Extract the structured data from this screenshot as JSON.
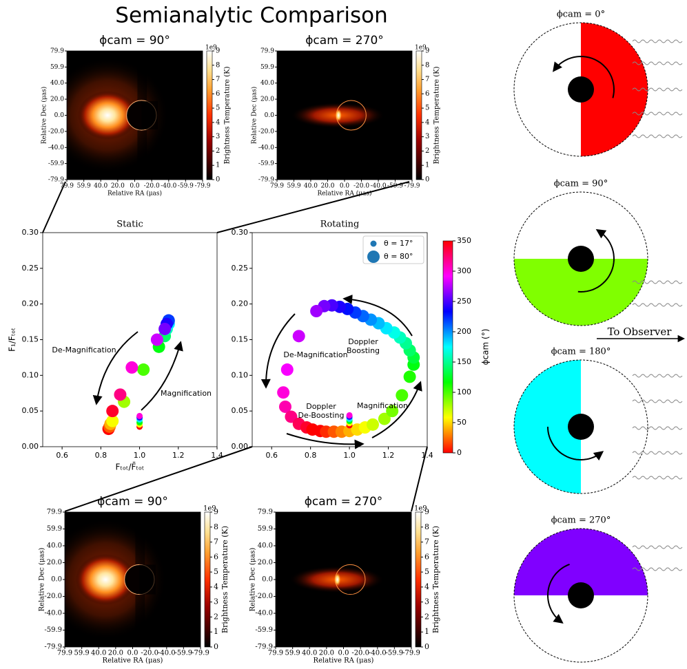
{
  "title": "Semianalytic Comparison",
  "chart_data": [
    {
      "type": "image",
      "title": "ϕcam = 90°",
      "xlabel": "Relative RA (μas)",
      "ylabel": "Relative Dec (μas)",
      "xlim": [
        79.9,
        -79.9
      ],
      "ylim": [
        -79.9,
        79.9
      ],
      "xticks": [
        79.9,
        59.9,
        {
          "value": 40,
          "label": "40.0"
        },
        {
          "value": 20,
          "label": "20.0"
        },
        {
          "value": 0,
          "label": "0.0"
        },
        {
          "value": -20,
          "label": "-20.0"
        },
        {
          "value": -40,
          "label": "-40.0"
        },
        -59.9,
        -79.9
      ],
      "yticks": [
        79.9,
        59.9,
        {
          "value": 40,
          "label": "40.0"
        },
        {
          "value": 20,
          "label": "20.0"
        },
        {
          "value": 0,
          "label": "0.0"
        },
        {
          "value": -20,
          "label": "-20.0"
        },
        {
          "value": -40,
          "label": "-40.0"
        },
        -59.9,
        -79.9
      ],
      "colorbar": {
        "label": "Brightness Temperature (K)",
        "offset": "1e9",
        "lim": [
          0,
          9
        ],
        "ticks": [
          0,
          1,
          2,
          3,
          4,
          5,
          6,
          7,
          8,
          9
        ],
        "cmap": "afmhot"
      }
    },
    {
      "type": "image",
      "title": "ϕcam = 270°",
      "xlabel": "Relative RA (μas)",
      "ylabel": "Relative Dec (μas)",
      "xlim": [
        79.9,
        -79.9
      ],
      "ylim": [
        -79.9,
        79.9
      ],
      "xticks": [
        79.9,
        59.9,
        {
          "value": 40,
          "label": "40.0"
        },
        {
          "value": 20,
          "label": "20.0"
        },
        {
          "value": 0,
          "label": "0.0"
        },
        {
          "value": -20,
          "label": "-20.0"
        },
        {
          "value": -40,
          "label": "-40.0"
        },
        -59.9,
        -79.9
      ],
      "yticks": [
        79.9,
        59.9,
        {
          "value": 40,
          "label": "40.0"
        },
        {
          "value": 20,
          "label": "20.0"
        },
        {
          "value": 0,
          "label": "0.0"
        },
        {
          "value": -20,
          "label": "-20.0"
        },
        {
          "value": -40,
          "label": "-40.0"
        },
        -59.9,
        -79.9
      ],
      "colorbar": {
        "label": "Brightness Temperature (K)",
        "offset": "1e9",
        "lim": [
          0,
          9
        ],
        "ticks": [
          0,
          1,
          2,
          3,
          4,
          5,
          6,
          7,
          8,
          9
        ],
        "cmap": "afmhot"
      }
    },
    {
      "type": "image",
      "title": "ϕcam = 90°",
      "xlabel": "Relative RA (μas)",
      "ylabel": "Relative Dec (μas)",
      "xlim": [
        79.9,
        -79.9
      ],
      "ylim": [
        -79.9,
        79.9
      ],
      "xticks": [
        79.9,
        59.9,
        {
          "value": 40,
          "label": "40.0"
        },
        {
          "value": 20,
          "label": "20.0"
        },
        {
          "value": 0,
          "label": "0.0"
        },
        {
          "value": -20,
          "label": "-20.0"
        },
        {
          "value": -40,
          "label": "-40.0"
        },
        -59.9,
        -79.9
      ],
      "yticks": [
        79.9,
        59.9,
        {
          "value": 40,
          "label": "40.0"
        },
        {
          "value": 20,
          "label": "20.0"
        },
        {
          "value": 0,
          "label": "0.0"
        },
        {
          "value": -20,
          "label": "-20.0"
        },
        {
          "value": -40,
          "label": "-40.0"
        },
        -59.9,
        -79.9
      ],
      "colorbar": {
        "label": "Brightness Temperature (K)",
        "offset": "1e9",
        "lim": [
          0,
          9
        ],
        "ticks": [
          0,
          1,
          2,
          3,
          4,
          5,
          6,
          7,
          8,
          9
        ],
        "cmap": "afmhot"
      }
    },
    {
      "type": "image",
      "title": "ϕcam = 270°",
      "xlabel": "Relative RA (μas)",
      "ylabel": "Relative Dec (μas)",
      "xlim": [
        79.9,
        -79.9
      ],
      "ylim": [
        -79.9,
        79.9
      ],
      "xticks": [
        79.9,
        59.9,
        {
          "value": 40,
          "label": "40.0"
        },
        {
          "value": 20,
          "label": "20.0"
        },
        {
          "value": 0,
          "label": "0.0"
        },
        {
          "value": -20,
          "label": "-20.0"
        },
        {
          "value": -40,
          "label": "-40.0"
        },
        -59.9,
        -79.9
      ],
      "yticks": [
        79.9,
        59.9,
        {
          "value": 40,
          "label": "40.0"
        },
        {
          "value": 20,
          "label": "20.0"
        },
        {
          "value": 0,
          "label": "0.0"
        },
        {
          "value": -20,
          "label": "-20.0"
        },
        {
          "value": -40,
          "label": "-40.0"
        },
        -59.9,
        -79.9
      ],
      "colorbar": {
        "label": "Brightness Temperature (K)",
        "offset": "1e9",
        "lim": [
          0,
          9
        ],
        "ticks": [
          0,
          1,
          2,
          3,
          4,
          5,
          6,
          7,
          8,
          9
        ],
        "cmap": "afmhot"
      }
    },
    {
      "type": "scatter",
      "title": "Static",
      "xlabel": "Fₜₒₜ/F̄ₜₒₜ",
      "ylabel": "F₁/Fₜₒₜ",
      "xlim": [
        0.5,
        1.4
      ],
      "ylim": [
        0,
        0.3
      ],
      "xticks": [
        0.6,
        0.8,
        {
          "value": 1,
          "label": "1.0"
        },
        1.2,
        1.4
      ],
      "yticks": [
        {
          "value": 0,
          "label": "0.00"
        },
        0.05,
        {
          "value": 0.1,
          "label": "0.10"
        },
        0.15,
        {
          "value": 0.2,
          "label": "0.20"
        },
        0.25,
        {
          "value": 0.3,
          "label": "0.30"
        }
      ],
      "series": [
        {
          "x": [
            1.0,
            1.0,
            1.0,
            1.0,
            1.0,
            1.0
          ],
          "values": [
            0.028,
            0.031,
            0.034,
            0.038,
            0.041,
            0.043
          ],
          "phi": [
            0,
            60,
            120,
            180,
            240,
            300
          ]
        },
        {
          "x": [
            0.84,
            0.845,
            0.85,
            0.86,
            0.92,
            1.02,
            1.1,
            1.13,
            1.14,
            1.15,
            1.15,
            1.15,
            1.14,
            1.13,
            1.09,
            0.96,
            0.9,
            0.86
          ],
          "values": [
            0.025,
            0.028,
            0.032,
            0.036,
            0.063,
            0.108,
            0.14,
            0.155,
            0.165,
            0.172,
            0.176,
            0.177,
            0.172,
            0.165,
            0.15,
            0.111,
            0.073,
            0.05
          ],
          "phi": [
            0,
            20,
            40,
            60,
            80,
            100,
            120,
            140,
            160,
            180,
            200,
            220,
            240,
            260,
            280,
            300,
            320,
            340
          ]
        }
      ],
      "annotations": [
        [
          "De-Magnification"
        ],
        [
          "Magnification"
        ]
      ]
    },
    {
      "type": "scatter",
      "title": "Rotating",
      "xlim": [
        0.5,
        1.4
      ],
      "ylim": [
        0,
        0.3
      ],
      "xticks": [
        0.6,
        0.8,
        {
          "value": 1,
          "label": "1.0"
        },
        1.2,
        1.4
      ],
      "yticks": [
        {
          "value": 0,
          "label": "0.00"
        },
        0.05,
        {
          "value": 0.1,
          "label": "0.10"
        },
        0.15,
        {
          "value": 0.2,
          "label": "0.20"
        },
        0.25,
        {
          "value": 0.3,
          "label": "0.30"
        }
      ],
      "legend": "upper right",
      "series": [
        {
          "name": "θ = 17°",
          "x": [
            1.0,
            1.0,
            1.0,
            1.0,
            1.0,
            1.0
          ],
          "values": [
            0.03,
            0.033,
            0.036,
            0.039,
            0.042,
            0.044
          ],
          "phi": [
            0,
            60,
            120,
            180,
            240,
            300
          ]
        },
        {
          "name": "θ = 80°",
          "x": [
            0.85,
            0.88,
            0.92,
            0.96,
            1.0,
            1.04,
            1.08,
            1.12,
            1.18,
            1.22,
            1.27,
            1.31,
            1.33,
            1.33,
            1.31,
            1.29,
            1.26,
            1.23,
            1.19,
            1.15,
            1.11,
            1.07,
            1.03,
            0.99,
            0.95,
            0.91,
            0.87,
            0.83,
            0.74,
            0.68,
            0.66,
            0.67,
            0.7,
            0.74,
            0.78,
            0.81
          ],
          "values": [
            0.022,
            0.021,
            0.021,
            0.021,
            0.022,
            0.024,
            0.027,
            0.031,
            0.039,
            0.05,
            0.072,
            0.098,
            0.115,
            0.125,
            0.135,
            0.145,
            0.153,
            0.16,
            0.166,
            0.173,
            0.178,
            0.183,
            0.188,
            0.193,
            0.196,
            0.198,
            0.197,
            0.19,
            0.155,
            0.108,
            0.076,
            0.056,
            0.042,
            0.032,
            0.027,
            0.024
          ],
          "phi": [
            0,
            10,
            20,
            30,
            40,
            50,
            60,
            70,
            80,
            90,
            100,
            110,
            120,
            130,
            140,
            150,
            160,
            170,
            180,
            190,
            200,
            210,
            220,
            230,
            240,
            250,
            260,
            270,
            280,
            290,
            300,
            310,
            320,
            330,
            340,
            350
          ]
        }
      ],
      "annotations": [
        [
          "De-Magnification"
        ],
        [
          "Doppler",
          "Boosting"
        ],
        [
          "Doppler",
          "De-Boosting"
        ],
        [
          "Magnification"
        ]
      ],
      "colorbar": {
        "label": "ϕcam (°)",
        "lim": [
          0,
          350
        ],
        "ticks": [
          0,
          50,
          100,
          150,
          200,
          250,
          300,
          350
        ],
        "cmap": "hsv"
      }
    }
  ],
  "diagrams": [
    {
      "title": "ϕcam = 0°"
    },
    {
      "title": "ϕcam = 90°"
    },
    {
      "title": "ϕcam = 180°"
    },
    {
      "title": "ϕcam = 270°"
    }
  ],
  "observer_label": "To Observer"
}
